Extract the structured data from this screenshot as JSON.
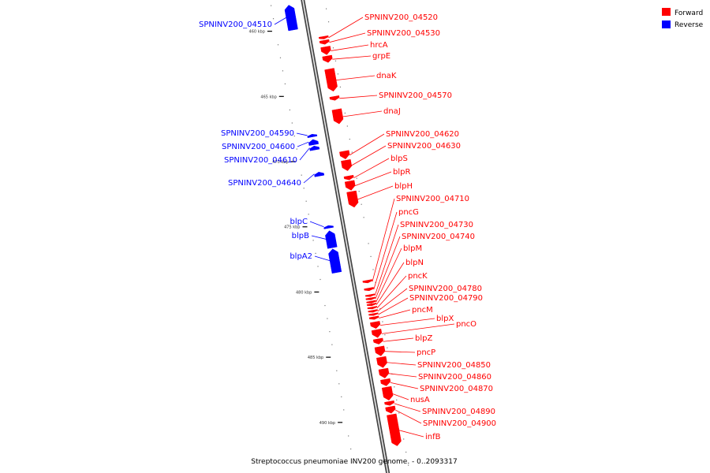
{
  "caption": "Streptococcus pneumoniae INV200 genome. - 0..2093317",
  "legend": [
    {
      "label": "Forward",
      "color": "#ff0000"
    },
    {
      "label": "Reverse",
      "color": "#0000ff"
    }
  ],
  "colors": {
    "forward": "#ff0000",
    "reverse": "#0000ff",
    "backbone": "#888888"
  },
  "ticks": [
    "460 kbp",
    "465 kbp",
    "470 kbp",
    "475 kbp",
    "480 kbp",
    "485 kbp",
    "490 kbp"
  ],
  "forward_genes": [
    {
      "label": "SPNINV200_04520",
      "start": 460.4,
      "end": 460.6
    },
    {
      "label": "SPNINV200_04530",
      "start": 460.7,
      "end": 461.0
    },
    {
      "label": "hrcA",
      "start": 461.2,
      "end": 461.8
    },
    {
      "label": "grpE",
      "start": 461.9,
      "end": 462.4
    },
    {
      "label": "dnaK",
      "start": 462.9,
      "end": 464.6
    },
    {
      "label": "SPNINV200_04570",
      "start": 465.0,
      "end": 465.3
    },
    {
      "label": "dnaJ",
      "start": 466.0,
      "end": 467.1
    },
    {
      "label": "SPNINV200_04620",
      "start": 469.2,
      "end": 469.8
    },
    {
      "label": "SPNINV200_04630",
      "start": 469.9,
      "end": 470.7
    },
    {
      "label": "blpS",
      "start": 471.1,
      "end": 471.4
    },
    {
      "label": "blpR",
      "start": 471.5,
      "end": 472.2
    },
    {
      "label": "blpH",
      "start": 472.3,
      "end": 473.5
    },
    {
      "label": "SPNINV200_04710",
      "start": 479.1,
      "end": 479.3
    },
    {
      "label": "pncG",
      "start": 479.7,
      "end": 479.9
    },
    {
      "label": "SPNINV200_04730",
      "start": 480.2,
      "end": 480.35
    },
    {
      "label": "SPNINV200_04740",
      "start": 480.45,
      "end": 480.6
    },
    {
      "label": "blpM",
      "start": 480.7,
      "end": 480.85
    },
    {
      "label": "blpN",
      "start": 480.9,
      "end": 481.05
    },
    {
      "label": "pncK",
      "start": 481.15,
      "end": 481.3
    },
    {
      "label": "SPNINV200_04780",
      "start": 481.4,
      "end": 481.55
    },
    {
      "label": "SPNINV200_04790",
      "start": 481.65,
      "end": 481.8
    },
    {
      "label": "pncM",
      "start": 481.9,
      "end": 482.1
    },
    {
      "label": "blpX",
      "start": 482.3,
      "end": 482.8
    },
    {
      "label": "pncO",
      "start": 482.9,
      "end": 483.5
    },
    {
      "label": "blpZ",
      "start": 483.6,
      "end": 484.0
    },
    {
      "label": "pncP",
      "start": 484.2,
      "end": 484.9
    },
    {
      "label": "SPNINV200_04850",
      "start": 485.0,
      "end": 485.8
    },
    {
      "label": "SPNINV200_04860",
      "start": 485.9,
      "end": 486.6
    },
    {
      "label": "SPNINV200_04870",
      "start": 486.7,
      "end": 487.2
    },
    {
      "label": "nusA",
      "start": 487.3,
      "end": 488.3
    },
    {
      "label": "SPNINV200_04890",
      "start": 488.4,
      "end": 488.7
    },
    {
      "label": "SPNINV200_04900",
      "start": 488.8,
      "end": 489.3
    },
    {
      "label": "infB",
      "start": 489.4,
      "end": 491.8
    }
  ],
  "reverse_genes": [
    {
      "label": "SPNINV200_04510",
      "start": 458.0,
      "end": 459.9
    },
    {
      "label": "SPNINV200_04590",
      "start": 467.9,
      "end": 468.1
    },
    {
      "label": "SPNINV200_04600",
      "start": 468.3,
      "end": 468.7
    },
    {
      "label": "SPNINV200_04610",
      "start": 468.8,
      "end": 469.1
    },
    {
      "label": "SPNINV200_04640",
      "start": 470.8,
      "end": 471.1
    },
    {
      "label": "blpC",
      "start": 474.9,
      "end": 475.1
    },
    {
      "label": "blpB",
      "start": 475.3,
      "end": 476.6
    },
    {
      "label": "blpA2",
      "start": 476.7,
      "end": 478.5
    }
  ]
}
